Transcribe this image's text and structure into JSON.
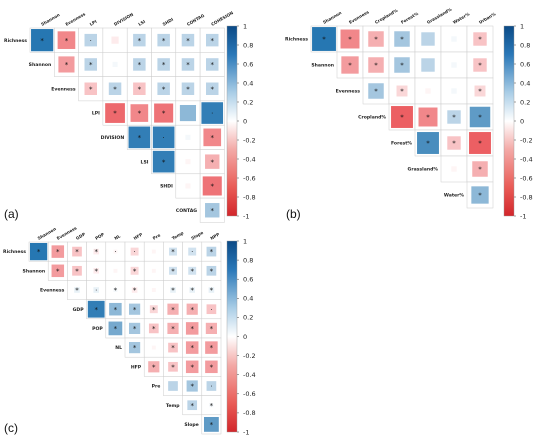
{
  "colors": {
    "negative": "#e7373c",
    "neutral": "#ffffff",
    "positive": "#1b70ae",
    "cell_border": "#cccccc"
  },
  "chart_data": [
    {
      "panel": "(a)",
      "type": "heatmap",
      "subtype": "correlation-upper-triangle",
      "row_labels": [
        "Richness",
        "Shannon",
        "Evenness",
        "LPI",
        "DIVISION",
        "LSI",
        "SHDI",
        "CONTAG"
      ],
      "col_labels": [
        "Shannon",
        "Evenness",
        "LPI",
        "DIVISION",
        "LSI",
        "SHDI",
        "CONTAG",
        "COHESION"
      ],
      "colorbar": {
        "ticks": [
          1,
          0.8,
          0.6,
          0.4,
          0.2,
          0,
          -0.2,
          -0.4,
          -0.6,
          -0.8,
          -1
        ],
        "range": [
          -1,
          1
        ]
      },
      "cells": [
        {
          "r": 0,
          "c": 0,
          "v": 0.95,
          "m": "*"
        },
        {
          "r": 0,
          "c": 1,
          "v": -0.6,
          "m": "*"
        },
        {
          "r": 0,
          "c": 2,
          "v": 0.3,
          "m": "·"
        },
        {
          "r": 0,
          "c": 3,
          "v": -0.1,
          "m": ""
        },
        {
          "r": 0,
          "c": 4,
          "v": 0.3,
          "m": "*"
        },
        {
          "r": 0,
          "c": 5,
          "v": 0.3,
          "m": "*"
        },
        {
          "r": 0,
          "c": 6,
          "v": 0.3,
          "m": "*"
        },
        {
          "r": 0,
          "c": 7,
          "v": 0.3,
          "m": "*"
        },
        {
          "r": 1,
          "c": 1,
          "v": -0.5,
          "m": "*"
        },
        {
          "r": 1,
          "c": 2,
          "v": 0.3,
          "m": "*"
        },
        {
          "r": 1,
          "c": 3,
          "v": 0.05,
          "m": ""
        },
        {
          "r": 1,
          "c": 4,
          "v": 0.3,
          "m": "*"
        },
        {
          "r": 1,
          "c": 5,
          "v": 0.3,
          "m": "*"
        },
        {
          "r": 1,
          "c": 6,
          "v": 0.3,
          "m": "*"
        },
        {
          "r": 1,
          "c": 7,
          "v": 0.3,
          "m": "*"
        },
        {
          "r": 2,
          "c": 2,
          "v": -0.3,
          "m": "*"
        },
        {
          "r": 2,
          "c": 3,
          "v": 0.3,
          "m": "*"
        },
        {
          "r": 2,
          "c": 4,
          "v": -0.3,
          "m": "*"
        },
        {
          "r": 2,
          "c": 5,
          "v": 0.3,
          "m": "*"
        },
        {
          "r": 2,
          "c": 6,
          "v": 0.3,
          "m": "*"
        },
        {
          "r": 2,
          "c": 7,
          "v": 0.3,
          "m": "*"
        },
        {
          "r": 3,
          "c": 3,
          "v": -0.75,
          "m": "*"
        },
        {
          "r": 3,
          "c": 4,
          "v": -0.6,
          "m": "*"
        },
        {
          "r": 3,
          "c": 5,
          "v": -0.7,
          "m": "*"
        },
        {
          "r": 3,
          "c": 6,
          "v": 0.5,
          "m": ""
        },
        {
          "r": 3,
          "c": 7,
          "v": 0.9,
          "m": "·"
        },
        {
          "r": 4,
          "c": 4,
          "v": 0.9,
          "m": "*"
        },
        {
          "r": 4,
          "c": 5,
          "v": 0.9,
          "m": "·"
        },
        {
          "r": 4,
          "c": 6,
          "v": 0.05,
          "m": ""
        },
        {
          "r": 4,
          "c": 7,
          "v": -0.6,
          "m": "*"
        },
        {
          "r": 5,
          "c": 5,
          "v": 0.9,
          "m": "*"
        },
        {
          "r": 5,
          "c": 6,
          "v": -0.05,
          "m": ""
        },
        {
          "r": 5,
          "c": 7,
          "v": -0.4,
          "m": "*"
        },
        {
          "r": 6,
          "c": 6,
          "v": -0.05,
          "m": ""
        },
        {
          "r": 6,
          "c": 7,
          "v": -0.7,
          "m": "*"
        },
        {
          "r": 7,
          "c": 7,
          "v": 0.4,
          "m": "*"
        }
      ]
    },
    {
      "panel": "(b)",
      "type": "heatmap",
      "subtype": "correlation-upper-triangle",
      "row_labels": [
        "Richness",
        "Shannon",
        "Evenness",
        "Cropland%",
        "Forest%",
        "Grassland%",
        "Water%"
      ],
      "col_labels": [
        "Shannon",
        "Evenness",
        "Cropland%",
        "Forest%",
        "Grassland%",
        "Water%",
        "Urban%"
      ],
      "colorbar": {
        "ticks": [
          1,
          0.8,
          0.6,
          0.4,
          0.2,
          0,
          -0.2,
          -0.4,
          -0.6,
          -0.8,
          -1
        ],
        "range": [
          -1,
          1
        ]
      },
      "cells": [
        {
          "r": 0,
          "c": 0,
          "v": 0.95,
          "m": "*"
        },
        {
          "r": 0,
          "c": 1,
          "v": -0.6,
          "m": "*"
        },
        {
          "r": 0,
          "c": 2,
          "v": -0.4,
          "m": "*"
        },
        {
          "r": 0,
          "c": 3,
          "v": 0.4,
          "m": "*"
        },
        {
          "r": 0,
          "c": 4,
          "v": 0.3,
          "m": ""
        },
        {
          "r": 0,
          "c": 5,
          "v": 0.05,
          "m": ""
        },
        {
          "r": 0,
          "c": 6,
          "v": -0.3,
          "m": "*"
        },
        {
          "r": 1,
          "c": 1,
          "v": -0.5,
          "m": "*"
        },
        {
          "r": 1,
          "c": 2,
          "v": -0.4,
          "m": "*"
        },
        {
          "r": 1,
          "c": 3,
          "v": 0.4,
          "m": "*"
        },
        {
          "r": 1,
          "c": 4,
          "v": 0.3,
          "m": ""
        },
        {
          "r": 1,
          "c": 5,
          "v": 0.05,
          "m": ""
        },
        {
          "r": 1,
          "c": 6,
          "v": -0.3,
          "m": "*"
        },
        {
          "r": 2,
          "c": 2,
          "v": 0.4,
          "m": "*"
        },
        {
          "r": 2,
          "c": 3,
          "v": -0.2,
          "m": "*"
        },
        {
          "r": 2,
          "c": 4,
          "v": -0.05,
          "m": ""
        },
        {
          "r": 2,
          "c": 5,
          "v": 0.05,
          "m": ""
        },
        {
          "r": 2,
          "c": 6,
          "v": -0.2,
          "m": "*"
        },
        {
          "r": 3,
          "c": 3,
          "v": -0.8,
          "m": "*"
        },
        {
          "r": 3,
          "c": 4,
          "v": -0.6,
          "m": "*"
        },
        {
          "r": 3,
          "c": 5,
          "v": 0.3,
          "m": "*"
        },
        {
          "r": 3,
          "c": 6,
          "v": 0.7,
          "m": "*"
        },
        {
          "r": 4,
          "c": 4,
          "v": 0.8,
          "m": "*"
        },
        {
          "r": 4,
          "c": 5,
          "v": -0.3,
          "m": "*"
        },
        {
          "r": 4,
          "c": 6,
          "v": -0.8,
          "m": "*"
        },
        {
          "r": 5,
          "c": 5,
          "v": -0.05,
          "m": ""
        },
        {
          "r": 5,
          "c": 6,
          "v": -0.4,
          "m": "*"
        },
        {
          "r": 6,
          "c": 6,
          "v": 0.5,
          "m": "*"
        }
      ]
    },
    {
      "panel": "(c)",
      "type": "heatmap",
      "subtype": "correlation-upper-triangle",
      "row_labels": [
        "Richness",
        "Shannon",
        "Evenness",
        "GDP",
        "POP",
        "NL",
        "HFP",
        "Pre",
        "Temp",
        "Slope"
      ],
      "col_labels": [
        "Shannon",
        "Evenness",
        "GDP",
        "POP",
        "NL",
        "HFP",
        "Pre",
        "Temp",
        "Slope",
        "NPP"
      ],
      "colorbar": {
        "ticks": [
          1,
          0.8,
          0.6,
          0.4,
          0.2,
          0,
          -0.2,
          -0.4,
          -0.6,
          -0.8,
          -1
        ],
        "range": [
          -1,
          1
        ]
      },
      "cells": [
        {
          "r": 0,
          "c": 0,
          "v": 0.95,
          "m": "*"
        },
        {
          "r": 0,
          "c": 1,
          "v": -0.5,
          "m": "*"
        },
        {
          "r": 0,
          "c": 2,
          "v": -0.3,
          "m": "*"
        },
        {
          "r": 0,
          "c": 3,
          "v": -0.1,
          "m": "*"
        },
        {
          "r": 0,
          "c": 4,
          "v": -0.05,
          "m": "·"
        },
        {
          "r": 0,
          "c": 5,
          "v": -0.2,
          "m": "·"
        },
        {
          "r": 0,
          "c": 6,
          "v": -0.05,
          "m": ""
        },
        {
          "r": 0,
          "c": 7,
          "v": 0.2,
          "m": "*"
        },
        {
          "r": 0,
          "c": 8,
          "v": 0.2,
          "m": "·"
        },
        {
          "r": 0,
          "c": 9,
          "v": 0.3,
          "m": "*"
        },
        {
          "r": 1,
          "c": 1,
          "v": -0.5,
          "m": "*"
        },
        {
          "r": 1,
          "c": 2,
          "v": -0.3,
          "m": "*"
        },
        {
          "r": 1,
          "c": 3,
          "v": -0.1,
          "m": "*"
        },
        {
          "r": 1,
          "c": 4,
          "v": -0.05,
          "m": ""
        },
        {
          "r": 1,
          "c": 5,
          "v": -0.2,
          "m": "*"
        },
        {
          "r": 1,
          "c": 6,
          "v": -0.05,
          "m": ""
        },
        {
          "r": 1,
          "c": 7,
          "v": 0.2,
          "m": "*"
        },
        {
          "r": 1,
          "c": 8,
          "v": 0.2,
          "m": "*"
        },
        {
          "r": 1,
          "c": 9,
          "v": 0.3,
          "m": "*"
        },
        {
          "r": 2,
          "c": 2,
          "v": 0.1,
          "m": "*"
        },
        {
          "r": 2,
          "c": 3,
          "v": 0.1,
          "m": "·"
        },
        {
          "r": 2,
          "c": 4,
          "v": 0.05,
          "m": "*"
        },
        {
          "r": 2,
          "c": 5,
          "v": -0.1,
          "m": "*"
        },
        {
          "r": 2,
          "c": 6,
          "v": -0.05,
          "m": ""
        },
        {
          "r": 2,
          "c": 7,
          "v": 0.1,
          "m": "*"
        },
        {
          "r": 2,
          "c": 8,
          "v": 0.1,
          "m": "*"
        },
        {
          "r": 2,
          "c": 9,
          "v": 0.1,
          "m": "*"
        },
        {
          "r": 3,
          "c": 3,
          "v": 0.9,
          "m": "*"
        },
        {
          "r": 3,
          "c": 4,
          "v": 0.5,
          "m": "*"
        },
        {
          "r": 3,
          "c": 5,
          "v": 0.4,
          "m": "*"
        },
        {
          "r": 3,
          "c": 6,
          "v": -0.2,
          "m": "*"
        },
        {
          "r": 3,
          "c": 7,
          "v": -0.4,
          "m": "*"
        },
        {
          "r": 3,
          "c": 8,
          "v": -0.4,
          "m": "*"
        },
        {
          "r": 3,
          "c": 9,
          "v": -0.3,
          "m": "·"
        },
        {
          "r": 4,
          "c": 4,
          "v": 0.6,
          "m": "*"
        },
        {
          "r": 4,
          "c": 5,
          "v": 0.4,
          "m": "*"
        },
        {
          "r": 4,
          "c": 6,
          "v": -0.3,
          "m": "*"
        },
        {
          "r": 4,
          "c": 7,
          "v": -0.4,
          "m": "*"
        },
        {
          "r": 4,
          "c": 8,
          "v": -0.5,
          "m": "*"
        },
        {
          "r": 4,
          "c": 9,
          "v": -0.4,
          "m": "*"
        },
        {
          "r": 5,
          "c": 5,
          "v": 0.4,
          "m": "*"
        },
        {
          "r": 5,
          "c": 6,
          "v": -0.05,
          "m": ""
        },
        {
          "r": 5,
          "c": 7,
          "v": -0.3,
          "m": "*"
        },
        {
          "r": 5,
          "c": 8,
          "v": -0.5,
          "m": "*"
        },
        {
          "r": 5,
          "c": 9,
          "v": -0.5,
          "m": "*"
        },
        {
          "r": 6,
          "c": 6,
          "v": -0.4,
          "m": "*"
        },
        {
          "r": 6,
          "c": 7,
          "v": -0.3,
          "m": "*"
        },
        {
          "r": 6,
          "c": 8,
          "v": -0.5,
          "m": "*"
        },
        {
          "r": 6,
          "c": 9,
          "v": -0.5,
          "m": "*"
        },
        {
          "r": 7,
          "c": 7,
          "v": 0.3,
          "m": ""
        },
        {
          "r": 7,
          "c": 8,
          "v": 0.4,
          "m": "*"
        },
        {
          "r": 7,
          "c": 9,
          "v": 0.3,
          "m": "·"
        },
        {
          "r": 8,
          "c": 8,
          "v": 0.3,
          "m": "*"
        },
        {
          "r": 8,
          "c": 9,
          "v": 0.05,
          "m": "*"
        },
        {
          "r": 9,
          "c": 9,
          "v": 0.7,
          "m": "*"
        }
      ]
    }
  ]
}
